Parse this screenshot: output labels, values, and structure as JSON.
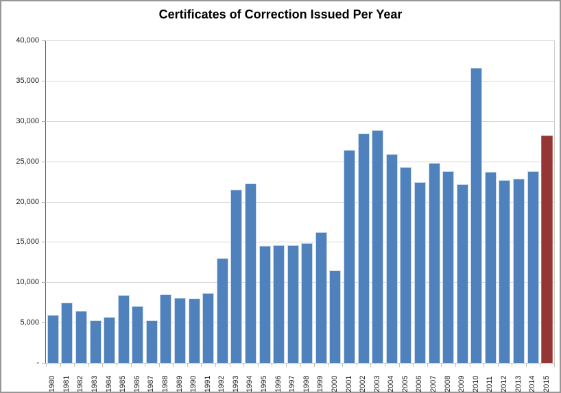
{
  "chart_data": {
    "type": "bar",
    "title": "Certificates of Correction Issued Per Year",
    "xlabel": "",
    "ylabel": "",
    "ylim": [
      0,
      40000
    ],
    "ytick_interval": 5000,
    "grid": true,
    "legend": false,
    "categories": [
      "1980",
      "1981",
      "1982",
      "1983",
      "1984",
      "1985",
      "1986",
      "1987",
      "1988",
      "1989",
      "1990",
      "1991",
      "1992",
      "1993",
      "1994",
      "1995",
      "1996",
      "1997",
      "1998",
      "1999",
      "2000",
      "2001",
      "2002",
      "2003",
      "2004",
      "2005",
      "2006",
      "2007",
      "2008",
      "2009",
      "2010",
      "2011",
      "2012",
      "2013",
      "2014",
      "2015"
    ],
    "values": [
      5900,
      7400,
      6400,
      5200,
      5600,
      8300,
      7000,
      5200,
      8400,
      8000,
      7900,
      8600,
      12900,
      21400,
      22200,
      14400,
      14500,
      14500,
      14800,
      16100,
      11400,
      26300,
      28400,
      28800,
      25800,
      24200,
      22300,
      24700,
      23700,
      22100,
      36500,
      23600,
      22600,
      22800,
      23700,
      28100
    ],
    "highlight_index": 35,
    "colors": {
      "bar": "#4F81BD",
      "bar_border": "#C9D9EC",
      "highlight": "#943634",
      "highlight_border": "#BE6360"
    },
    "yticks": [
      {
        "label": "40,000",
        "value": 40000
      },
      {
        "label": "35,000",
        "value": 35000
      },
      {
        "label": "30,000",
        "value": 30000
      },
      {
        "label": "25,000",
        "value": 25000
      },
      {
        "label": "20,000",
        "value": 20000
      },
      {
        "label": "15,000",
        "value": 15000
      },
      {
        "label": "10,000",
        "value": 10000
      },
      {
        "label": "5,000",
        "value": 5000
      },
      {
        "label": "-",
        "value": 0
      }
    ]
  }
}
